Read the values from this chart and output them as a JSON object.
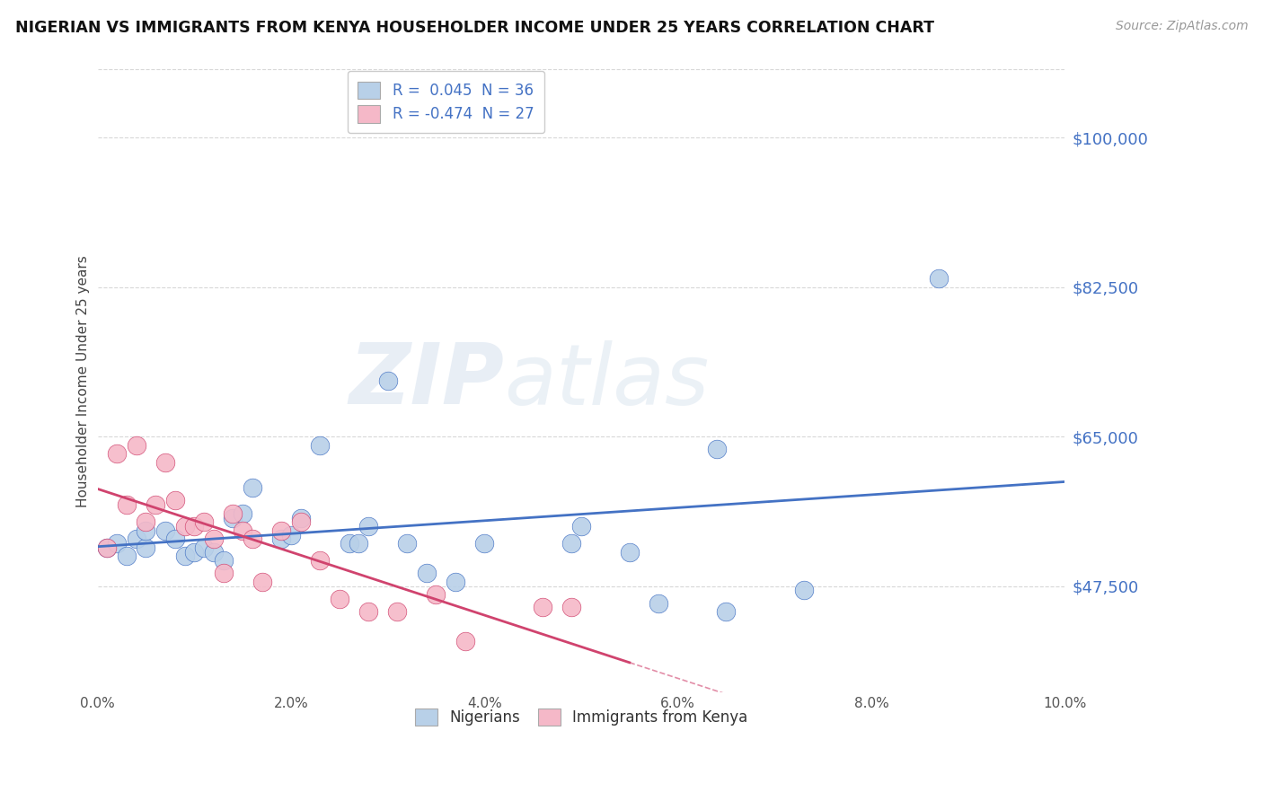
{
  "title": "NIGERIAN VS IMMIGRANTS FROM KENYA HOUSEHOLDER INCOME UNDER 25 YEARS CORRELATION CHART",
  "source": "Source: ZipAtlas.com",
  "ylabel": "Householder Income Under 25 years",
  "xlim": [
    0.0,
    0.1
  ],
  "ylim": [
    35000,
    108000
  ],
  "xtick_labels": [
    "0.0%",
    "2.0%",
    "4.0%",
    "6.0%",
    "8.0%",
    "10.0%"
  ],
  "xtick_vals": [
    0.0,
    0.02,
    0.04,
    0.06,
    0.08,
    0.1
  ],
  "ytick_labels": [
    "$47,500",
    "$65,000",
    "$82,500",
    "$100,000"
  ],
  "ytick_vals": [
    47500,
    65000,
    82500,
    100000
  ],
  "legend1_label": "R =  0.045  N = 36",
  "legend2_label": "R = -0.474  N = 27",
  "legend1_color": "#b8d0e8",
  "legend2_color": "#f5b8c8",
  "watermark": "ZIPatlas",
  "nigerian_color": "#b8d0e8",
  "kenya_color": "#f5b8c8",
  "trend_nigerian_color": "#4472c4",
  "trend_kenya_color": "#d0436e",
  "background_color": "#ffffff",
  "grid_color": "#d8d8d8",
  "axis_label_color": "#4472c4",
  "nigerian_x": [
    0.001,
    0.002,
    0.003,
    0.004,
    0.005,
    0.005,
    0.007,
    0.008,
    0.009,
    0.01,
    0.011,
    0.012,
    0.013,
    0.014,
    0.015,
    0.016,
    0.019,
    0.02,
    0.021,
    0.023,
    0.026,
    0.027,
    0.028,
    0.03,
    0.032,
    0.034,
    0.037,
    0.04,
    0.049,
    0.05,
    0.055,
    0.058,
    0.064,
    0.065,
    0.073,
    0.087
  ],
  "nigerian_y": [
    52000,
    52500,
    51000,
    53000,
    52000,
    54000,
    54000,
    53000,
    51000,
    51500,
    52000,
    51500,
    50500,
    55500,
    56000,
    59000,
    53000,
    53500,
    55500,
    64000,
    52500,
    52500,
    54500,
    71500,
    52500,
    49000,
    48000,
    52500,
    52500,
    54500,
    51500,
    45500,
    63500,
    44500,
    47000,
    83500
  ],
  "kenya_x": [
    0.001,
    0.002,
    0.003,
    0.004,
    0.005,
    0.006,
    0.007,
    0.008,
    0.009,
    0.01,
    0.011,
    0.012,
    0.013,
    0.014,
    0.015,
    0.016,
    0.017,
    0.019,
    0.021,
    0.023,
    0.025,
    0.028,
    0.031,
    0.035,
    0.038,
    0.046,
    0.049
  ],
  "kenya_y": [
    52000,
    63000,
    57000,
    64000,
    55000,
    57000,
    62000,
    57500,
    54500,
    54500,
    55000,
    53000,
    49000,
    56000,
    54000,
    53000,
    48000,
    54000,
    55000,
    50500,
    46000,
    44500,
    44500,
    46500,
    41000,
    45000,
    45000
  ],
  "trend_nig_x0": 0.0,
  "trend_nig_x1": 0.1,
  "trend_nig_y0": 52000,
  "trend_nig_y1": 55500,
  "trend_ken_x0": 0.0,
  "trend_ken_x1": 0.1,
  "trend_ken_y0": 59500,
  "trend_ken_y1": 35000,
  "trend_ken_solid_end": 0.055
}
